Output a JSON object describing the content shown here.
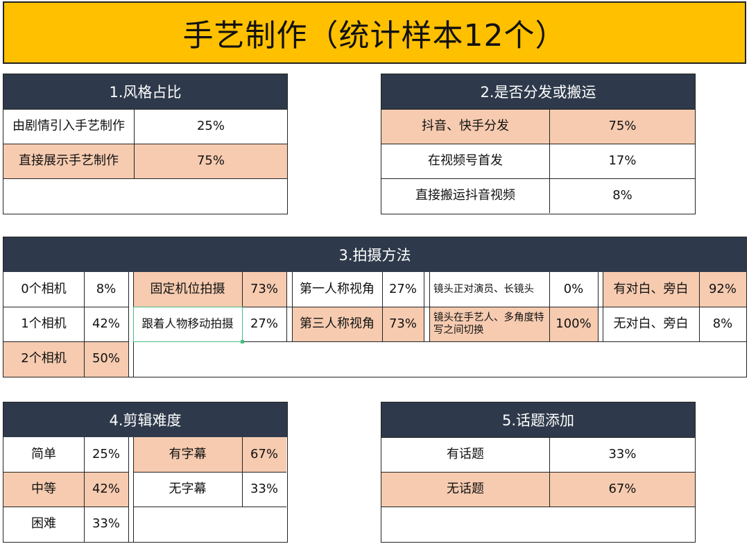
{
  "title": "手艺制作（统计样本12个）",
  "s1": {
    "header": "1.风格占比",
    "rows": [
      {
        "label": "由剧情引入手艺制作",
        "value": "25%"
      },
      {
        "label": "直接展示手艺制作",
        "value": "75%"
      }
    ]
  },
  "s2": {
    "header": "2.是否分发或搬运",
    "rows": [
      {
        "label": "抖音、快手分发",
        "value": "75%"
      },
      {
        "label": "在视频号首发",
        "value": "17%"
      },
      {
        "label": "直接搬运抖音视频",
        "value": "8%"
      }
    ]
  },
  "s3": {
    "header": "3.拍摄方法",
    "camera": [
      {
        "label": "0个相机",
        "value": "8%"
      },
      {
        "label": "1个相机",
        "value": "42%"
      },
      {
        "label": "2个相机",
        "value": "50%"
      }
    ],
    "shooting": [
      {
        "label": "固定机位拍摄",
        "value": "73%"
      },
      {
        "label": "跟着人物移动拍摄",
        "value": "27%"
      }
    ],
    "view": [
      {
        "label": "第一人称视角",
        "value": "27%"
      },
      {
        "label": "第三人称视角",
        "value": "73%"
      }
    ],
    "lens": [
      {
        "label": "镜头正对演员、长镜头",
        "value": "0%"
      },
      {
        "label": "镜头在手艺人、多角度特写之间切换",
        "value": "100%"
      }
    ],
    "dialogue": [
      {
        "label": "有对白、旁白",
        "value": "92%"
      },
      {
        "label": "无对白、旁白",
        "value": "8%"
      }
    ]
  },
  "s4": {
    "header": "4.剪辑难度",
    "difficulty": [
      {
        "label": "简单",
        "value": "25%"
      },
      {
        "label": "中等",
        "value": "42%"
      },
      {
        "label": "困难",
        "value": "33%"
      }
    ],
    "subtitle": [
      {
        "label": "有字幕",
        "value": "67%"
      },
      {
        "label": "无字幕",
        "value": "33%"
      }
    ]
  },
  "s5": {
    "header": "5.话题添加",
    "rows": [
      {
        "label": "有话题",
        "value": "33%"
      },
      {
        "label": "无话题",
        "value": "67%"
      }
    ]
  },
  "colors": {
    "banner": "#ffc000",
    "header": "#2e3a4b",
    "highlight": "#f6cbb0",
    "selection": "#3fbf7f"
  }
}
